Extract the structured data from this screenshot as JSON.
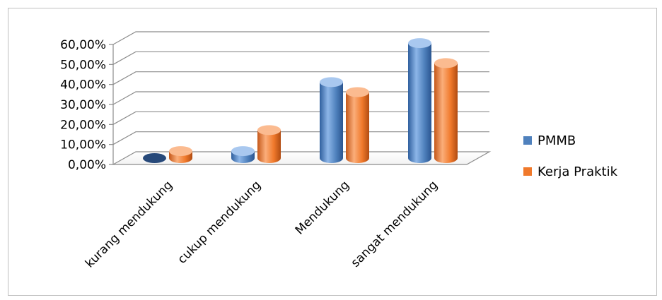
{
  "chart_data": {
    "type": "bar",
    "categories": [
      "kurang mendukung",
      "cukup mendukung",
      "Mendukung",
      "sangat mendukung"
    ],
    "series": [
      {
        "name": "PMMB",
        "values": [
          0.0,
          3.5,
          38.0,
          57.5
        ],
        "color": "#4f81bd"
      },
      {
        "name": "Kerja Praktik",
        "values": [
          3.5,
          14.0,
          33.0,
          47.5
        ],
        "color": "#f0792b"
      }
    ],
    "y_ticks": [
      "0,00%",
      "10,00%",
      "20,00%",
      "30,00%",
      "40,00%",
      "50,00%",
      "60,00%"
    ],
    "ylim": [
      0,
      60
    ],
    "grid": true,
    "legend_position": "right",
    "style": "3d-cylinder"
  }
}
